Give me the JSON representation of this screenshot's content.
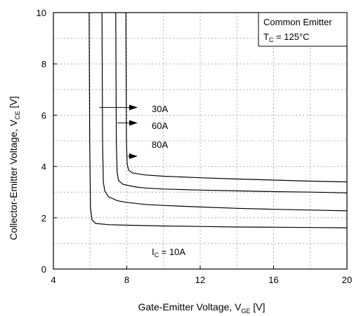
{
  "chart_data": {
    "type": "line",
    "title": "",
    "xlabel": {
      "main": "Gate-Emitter Voltage, V",
      "sub": "GE",
      "unit": " [V]"
    },
    "ylabel": {
      "main": "Collector-Emitter Voltage, V",
      "sub": "CE",
      "unit": " [V]"
    },
    "xlim": [
      4,
      20
    ],
    "ylim": [
      0,
      10
    ],
    "x_ticks": [
      4,
      8,
      12,
      16,
      20
    ],
    "y_ticks": [
      0,
      2,
      4,
      6,
      8,
      10
    ],
    "x_grid": [
      6,
      8,
      10,
      12,
      14,
      16,
      18,
      20
    ],
    "y_grid": [
      1,
      2,
      3,
      4,
      5,
      6,
      7,
      8,
      9,
      10
    ],
    "grid": true,
    "legend_box": {
      "line1": "Common Emitter",
      "line2_main": "T",
      "line2_sub": "C",
      "line2_rest": " = 125°C"
    },
    "series": [
      {
        "name": "I_C = 10A",
        "x": [
          5.95,
          5.98,
          6.02,
          6.1,
          6.3,
          7,
          8,
          10,
          12,
          14,
          16,
          18,
          20
        ],
        "y": [
          10,
          5,
          2.4,
          1.93,
          1.78,
          1.73,
          1.71,
          1.68,
          1.66,
          1.64,
          1.63,
          1.62,
          1.61
        ]
      },
      {
        "name": "30A",
        "x": [
          6.65,
          6.68,
          6.72,
          6.8,
          7,
          7.5,
          8,
          9,
          10,
          12,
          14,
          16,
          18,
          20
        ],
        "y": [
          10,
          5,
          3.4,
          3.05,
          2.82,
          2.66,
          2.6,
          2.52,
          2.48,
          2.42,
          2.37,
          2.33,
          2.3,
          2.27
        ]
      },
      {
        "name": "60A",
        "x": [
          7.4,
          7.43,
          7.47,
          7.55,
          7.8,
          8.5,
          9,
          10,
          12,
          14,
          16,
          18,
          20
        ],
        "y": [
          10,
          5,
          3.8,
          3.45,
          3.3,
          3.2,
          3.16,
          3.12,
          3.08,
          3.05,
          3.02,
          3.0,
          2.97
        ]
      },
      {
        "name": "80A",
        "x": [
          7.95,
          7.98,
          8.02,
          8.1,
          8.3,
          9,
          10,
          12,
          14,
          16,
          18,
          20
        ],
        "y": [
          10,
          5,
          4.1,
          3.86,
          3.75,
          3.67,
          3.62,
          3.56,
          3.51,
          3.47,
          3.43,
          3.4
        ]
      }
    ],
    "annotations": [
      {
        "text": "I",
        "sub": "C",
        "rest": " = 10A"
      },
      {
        "text": "30A",
        "arrow_from": [
          6.5,
          6.3
        ],
        "arrow_to": [
          8.55,
          6.3
        ]
      },
      {
        "text": "60A",
        "arrow_from": [
          7.5,
          5.7
        ],
        "arrow_to": [
          8.55,
          5.7
        ]
      },
      {
        "text": "80A",
        "arrow_from": [
          8.05,
          4.4
        ],
        "arrow_to": [
          8.55,
          4.4
        ]
      }
    ]
  }
}
